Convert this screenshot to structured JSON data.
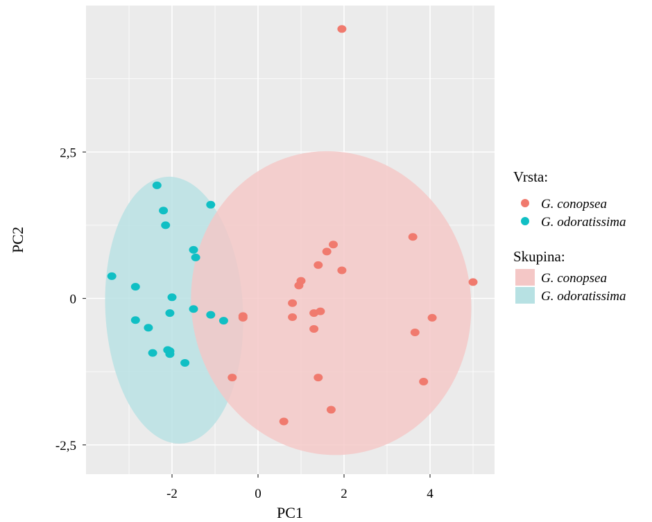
{
  "chart_data": {
    "type": "scatter",
    "xlabel": "PC1",
    "ylabel": "PC2",
    "xlim": [
      -4.0,
      5.5
    ],
    "ylim": [
      -3.0,
      5.0
    ],
    "x_ticks": [
      -2,
      0,
      2,
      4
    ],
    "x_tick_labels": [
      "-2",
      "0",
      "2",
      "4"
    ],
    "y_ticks": [
      -2.5,
      0,
      2.5
    ],
    "y_tick_labels": [
      "-2,5",
      "0",
      "2,5"
    ],
    "grid": true,
    "legend_position": "right",
    "legend": {
      "point_title": "Vrsta:",
      "fill_title": "Skupina:",
      "entries": [
        "G. conopsea",
        "G. odoratissima"
      ]
    },
    "colors": {
      "G. conopsea": "#f07a6e",
      "G. odoratissima": "#10bfc4",
      "ellipse_conopsea": "#f4c7c6",
      "ellipse_odoratissima": "#b7e1e3",
      "panel": "#ebebeb",
      "grid": "#ffffff"
    },
    "series": [
      {
        "name": "G. conopsea",
        "points": [
          [
            1.95,
            4.6
          ],
          [
            3.6,
            1.05
          ],
          [
            5.0,
            0.28
          ],
          [
            1.75,
            0.92
          ],
          [
            1.6,
            0.8
          ],
          [
            1.4,
            0.57
          ],
          [
            1.95,
            0.48
          ],
          [
            1.0,
            0.3
          ],
          [
            0.95,
            0.22
          ],
          [
            0.8,
            -0.08
          ],
          [
            1.45,
            -0.22
          ],
          [
            1.3,
            -0.25
          ],
          [
            0.8,
            -0.32
          ],
          [
            -0.35,
            -0.3
          ],
          [
            -0.35,
            -0.33
          ],
          [
            4.05,
            -0.33
          ],
          [
            1.3,
            -0.52
          ],
          [
            3.65,
            -0.58
          ],
          [
            -0.6,
            -1.35
          ],
          [
            1.4,
            -1.35
          ],
          [
            3.85,
            -1.42
          ],
          [
            1.7,
            -1.9
          ],
          [
            0.6,
            -2.1
          ]
        ]
      },
      {
        "name": "G. odoratissima",
        "points": [
          [
            -2.35,
            1.93
          ],
          [
            -2.2,
            1.5
          ],
          [
            -1.1,
            1.6
          ],
          [
            -2.15,
            1.25
          ],
          [
            -1.5,
            0.83
          ],
          [
            -1.45,
            0.7
          ],
          [
            -3.4,
            0.38
          ],
          [
            -2.85,
            0.2
          ],
          [
            -2.0,
            0.02
          ],
          [
            -1.5,
            -0.18
          ],
          [
            -2.05,
            -0.25
          ],
          [
            -1.1,
            -0.28
          ],
          [
            -0.8,
            -0.38
          ],
          [
            -2.85,
            -0.37
          ],
          [
            -2.55,
            -0.5
          ],
          [
            -2.1,
            -0.88
          ],
          [
            -2.05,
            -0.9
          ],
          [
            -2.45,
            -0.93
          ],
          [
            -2.05,
            -0.95
          ],
          [
            -1.7,
            -1.1
          ]
        ]
      }
    ],
    "ellipses": [
      {
        "group": "G. odoratissima",
        "cx": -1.95,
        "cy": -0.2,
        "rx": 1.6,
        "ry": 2.28,
        "rotation_deg": -3
      },
      {
        "group": "G. conopsea",
        "cx": 1.7,
        "cy": -0.08,
        "rx": 3.25,
        "ry": 2.6,
        "rotation_deg": -10
      }
    ]
  }
}
